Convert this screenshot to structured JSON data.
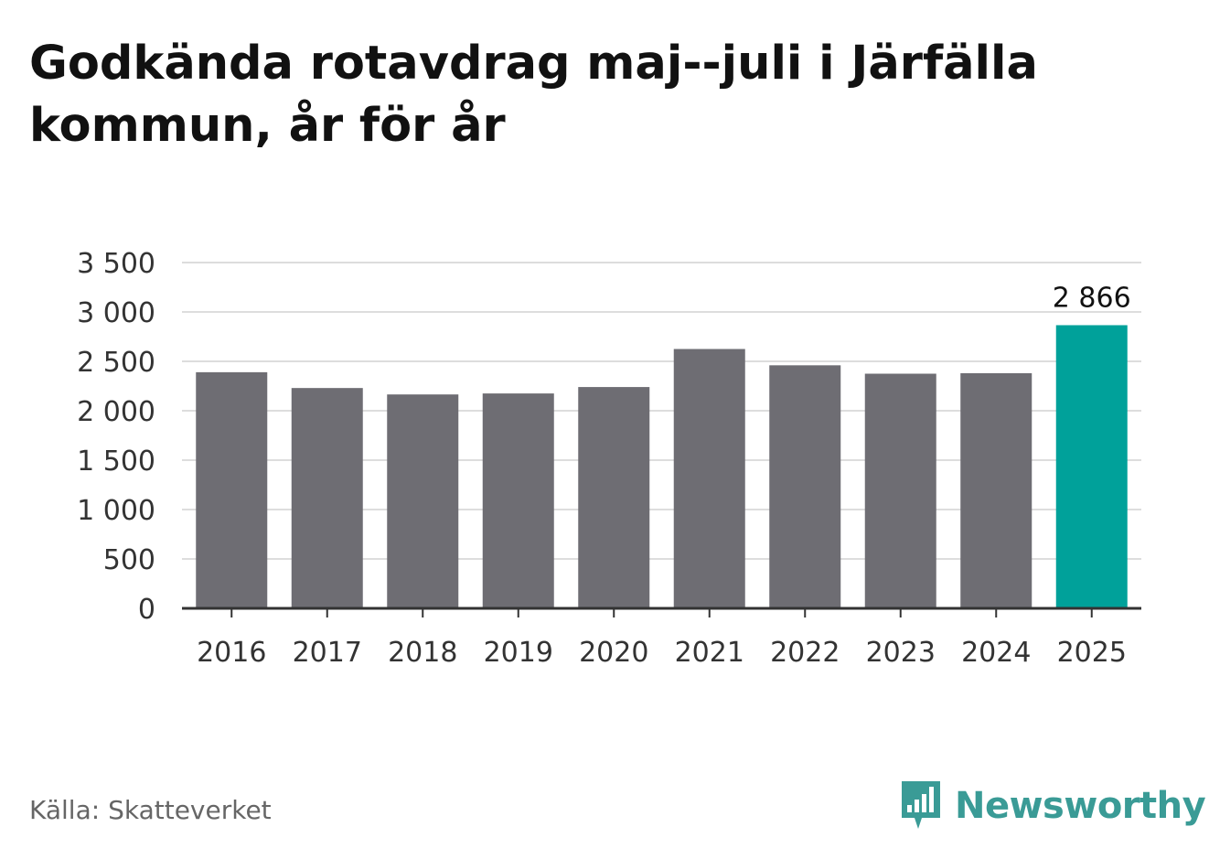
{
  "title": "Godkända rotavdrag maj--juli i Järfälla kommun, år för år",
  "source": "Källa: Skatteverket",
  "logo": {
    "text": "Newsworthy",
    "icon": "newsworthy-chart-bubble-icon",
    "color": "#3a9b96"
  },
  "chart_data": {
    "type": "bar",
    "categories": [
      "2016",
      "2017",
      "2018",
      "2019",
      "2020",
      "2021",
      "2022",
      "2023",
      "2024",
      "2025"
    ],
    "series": [
      {
        "values": [
          2390,
          2230,
          2165,
          2175,
          2240,
          2625,
          2460,
          2375,
          2380,
          2866
        ]
      }
    ],
    "highlight": {
      "index": 9,
      "label": "2 866"
    },
    "colors": {
      "bar": "#6e6d73",
      "highlight": "#00a19a",
      "grid": "#dddddd",
      "axis": "#333333"
    },
    "yticks": [
      "0",
      "500",
      "1 000",
      "1 500",
      "2 000",
      "2 500",
      "3 000",
      "3 500"
    ],
    "ylim": [
      0,
      3500
    ],
    "grid": true,
    "legend": false
  }
}
